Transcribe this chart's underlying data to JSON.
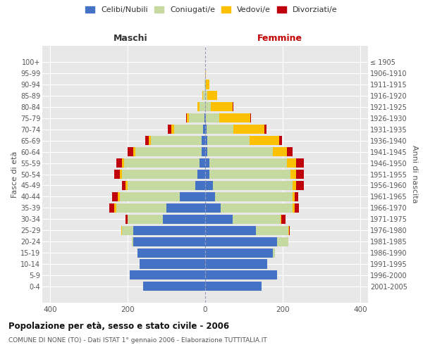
{
  "age_groups": [
    "0-4",
    "5-9",
    "10-14",
    "15-19",
    "20-24",
    "25-29",
    "30-34",
    "35-39",
    "40-44",
    "45-49",
    "50-54",
    "55-59",
    "60-64",
    "65-69",
    "70-74",
    "75-79",
    "80-84",
    "85-89",
    "90-94",
    "95-99",
    "100+"
  ],
  "birth_years": [
    "2001-2005",
    "1996-2000",
    "1991-1995",
    "1986-1990",
    "1981-1985",
    "1976-1980",
    "1971-1975",
    "1966-1970",
    "1961-1965",
    "1956-1960",
    "1951-1955",
    "1946-1950",
    "1941-1945",
    "1936-1940",
    "1931-1935",
    "1926-1930",
    "1921-1925",
    "1916-1920",
    "1911-1915",
    "1906-1910",
    "≤ 1905"
  ],
  "male": {
    "celibi": [
      160,
      195,
      170,
      175,
      185,
      185,
      110,
      100,
      65,
      25,
      20,
      15,
      10,
      10,
      5,
      2,
      0,
      0,
      0,
      0,
      0
    ],
    "coniugati": [
      0,
      0,
      0,
      0,
      5,
      30,
      90,
      130,
      155,
      175,
      195,
      195,
      170,
      130,
      75,
      40,
      15,
      5,
      2,
      0,
      0
    ],
    "vedovi": [
      0,
      0,
      0,
      0,
      0,
      2,
      0,
      5,
      5,
      5,
      5,
      5,
      5,
      5,
      8,
      5,
      5,
      2,
      0,
      0,
      0
    ],
    "divorziati": [
      0,
      0,
      0,
      0,
      0,
      0,
      5,
      12,
      15,
      10,
      15,
      15,
      15,
      10,
      8,
      2,
      0,
      0,
      0,
      0,
      0
    ]
  },
  "female": {
    "nubili": [
      145,
      185,
      160,
      175,
      185,
      130,
      70,
      40,
      25,
      20,
      10,
      10,
      5,
      5,
      3,
      2,
      0,
      0,
      0,
      0,
      0
    ],
    "coniugate": [
      0,
      0,
      0,
      5,
      30,
      85,
      125,
      185,
      200,
      205,
      210,
      200,
      170,
      110,
      70,
      35,
      15,
      5,
      2,
      0,
      0
    ],
    "vedove": [
      0,
      0,
      0,
      0,
      0,
      2,
      2,
      5,
      5,
      10,
      15,
      25,
      35,
      75,
      80,
      80,
      55,
      25,
      8,
      2,
      0
    ],
    "divorziate": [
      0,
      0,
      0,
      0,
      0,
      2,
      10,
      12,
      10,
      20,
      20,
      20,
      15,
      8,
      5,
      2,
      2,
      0,
      0,
      0,
      0
    ]
  },
  "colors": {
    "celibi_nubili": "#4472c4",
    "coniugati": "#c5d9a0",
    "vedovi": "#ffc000",
    "divorziati": "#c0000b"
  },
  "xlim": [
    -420,
    420
  ],
  "xticks": [
    -400,
    -200,
    0,
    200,
    400
  ],
  "xticklabels": [
    "400",
    "200",
    "0",
    "200",
    "400"
  ],
  "title": "Popolazione per età, sesso e stato civile - 2006",
  "subtitle": "COMUNE DI NONE (TO) - Dati ISTAT 1° gennaio 2006 - Elaborazione TUTTITALIA.IT",
  "ylabel_left": "Fasce di età",
  "ylabel_right": "Anni di nascita",
  "header_left": "Maschi",
  "header_right": "Femmine",
  "legend_labels": [
    "Celibi/Nubili",
    "Coniugati/e",
    "Vedovi/e",
    "Divorziati/e"
  ],
  "bar_height": 0.82,
  "plot_bg_color": "#e8e8e8",
  "bg_color": "#ffffff",
  "grid_color": "#ffffff"
}
